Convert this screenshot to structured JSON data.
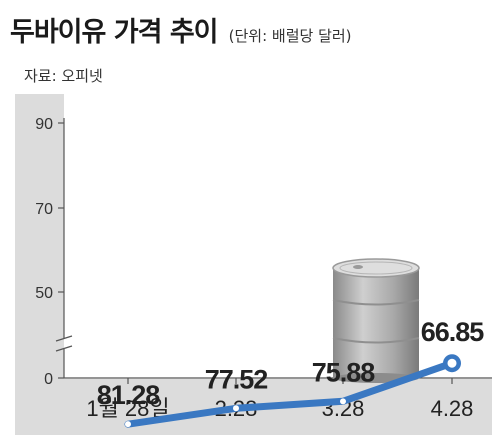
{
  "title": "두바이유 가격 추이",
  "unit": "(단위: 배럴당 달러)",
  "source": "자료: 오피넷",
  "colors": {
    "line": "#3a78c2",
    "panel": "#dcdcdc",
    "plot": "#ffffff"
  },
  "icon": "oil-barrel-icon",
  "chart_data": {
    "type": "line",
    "x": [
      "1월 28일",
      "2.28",
      "3.28",
      "4.28"
    ],
    "series": [
      {
        "values": [
          81.28,
          77.52,
          75.88,
          66.85
        ]
      }
    ],
    "value_labels": [
      "81.28",
      "77.52",
      "75.88",
      "66.85"
    ],
    "y_ticks": [
      "0",
      "50",
      "70",
      "90"
    ],
    "ylim": [
      50,
      90
    ],
    "axis_break": true,
    "grid": false,
    "legend": "none"
  }
}
